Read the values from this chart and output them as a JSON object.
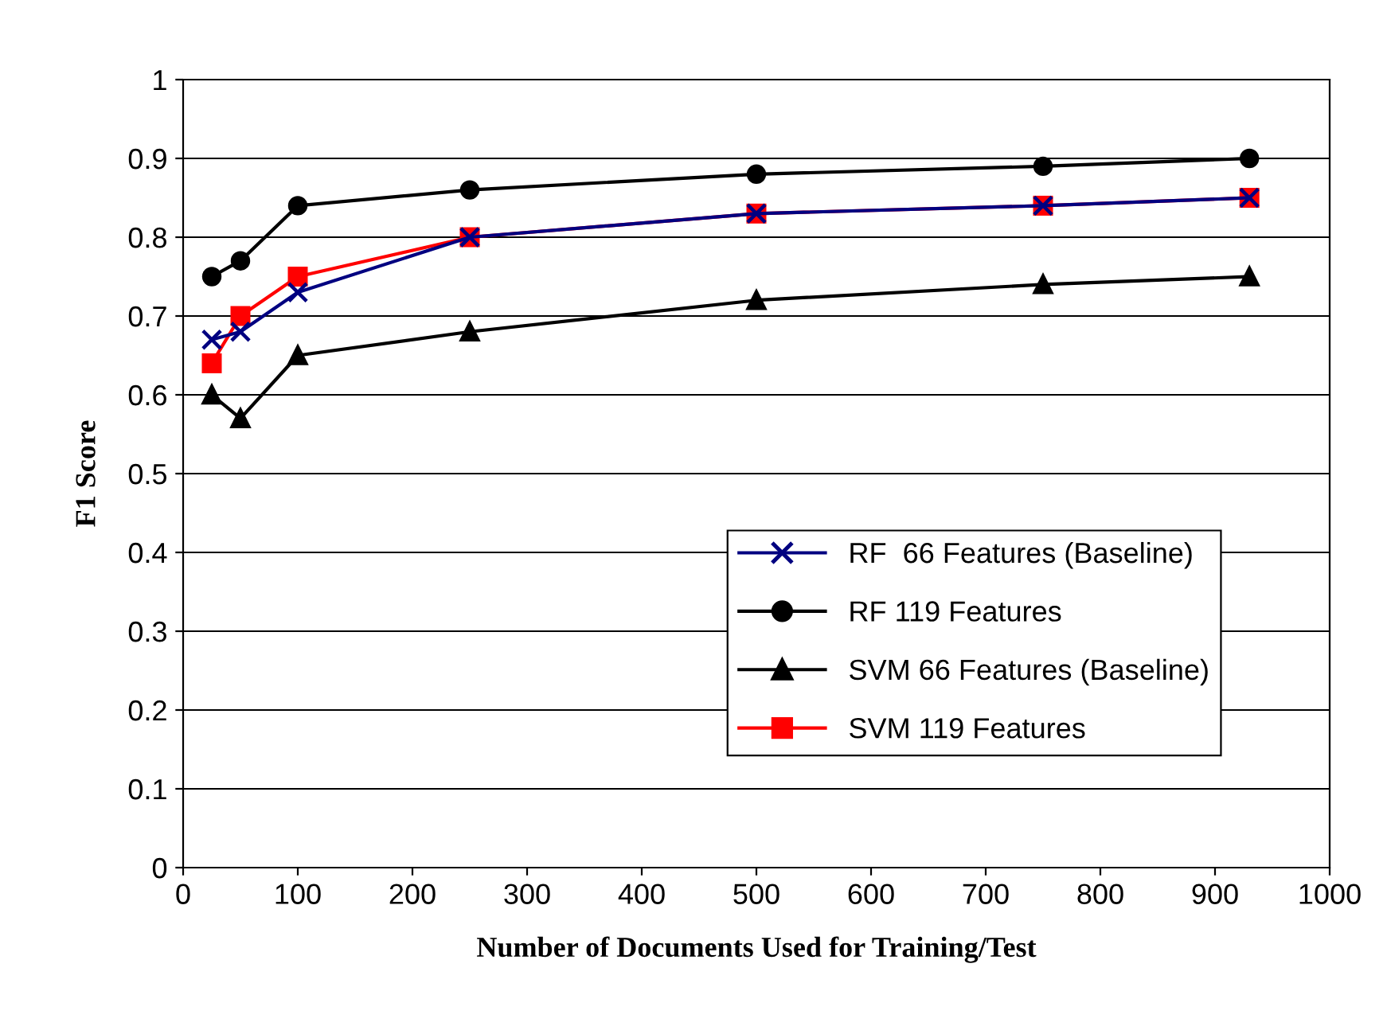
{
  "chart_data": {
    "type": "line",
    "xlabel": "Number of Documents Used for Training/Test",
    "ylabel": "F1 Score",
    "x": [
      25,
      50,
      100,
      250,
      500,
      750,
      930
    ],
    "series": [
      {
        "name": "RF  66 Features (Baseline)",
        "color": "#000080",
        "marker": "cross",
        "values": [
          0.67,
          0.68,
          0.73,
          0.8,
          0.83,
          0.84,
          0.85
        ]
      },
      {
        "name": "RF 119 Features",
        "color": "#000000",
        "marker": "circle",
        "values": [
          0.75,
          0.77,
          0.84,
          0.86,
          0.88,
          0.89,
          0.9
        ]
      },
      {
        "name": "SVM 66 Features (Baseline)",
        "color": "#000000",
        "marker": "triangle",
        "values": [
          0.6,
          0.57,
          0.65,
          0.68,
          0.72,
          0.74,
          0.75
        ]
      },
      {
        "name": "SVM 119 Features",
        "color": "#ff0000",
        "marker": "square",
        "values": [
          0.64,
          0.7,
          0.75,
          0.8,
          0.83,
          0.84,
          0.85
        ]
      }
    ],
    "xlim": [
      0,
      1000
    ],
    "xticks": [
      0,
      100,
      200,
      300,
      400,
      500,
      600,
      700,
      800,
      900,
      1000
    ],
    "ylim": [
      0,
      1
    ],
    "yticks": [
      0,
      0.1,
      0.2,
      0.3,
      0.4,
      0.5,
      0.6,
      0.7,
      0.8,
      0.9,
      1
    ],
    "grid": "y",
    "legend": "lower right"
  }
}
